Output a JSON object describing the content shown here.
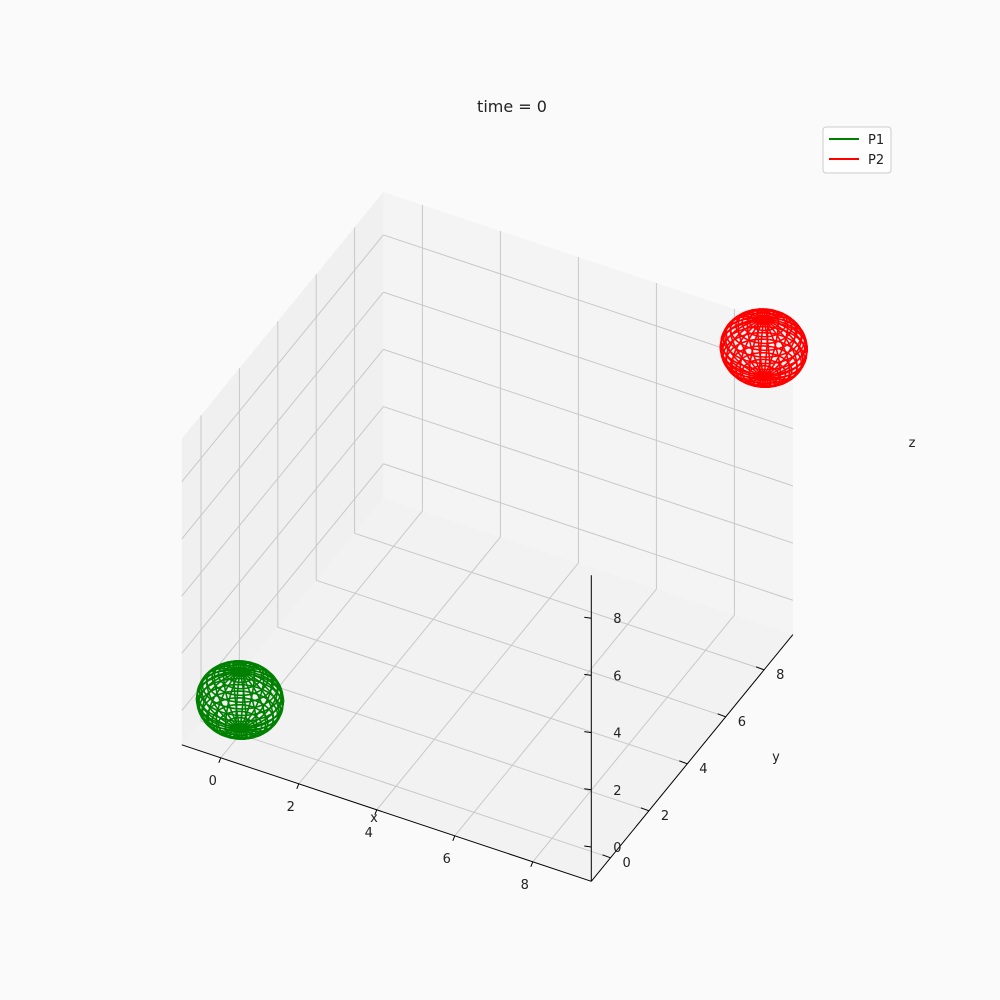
{
  "chart_data": {
    "type": "scatter",
    "projection": "3d",
    "title": "time = 0",
    "xlabel": "x",
    "ylabel": "y",
    "zlabel": "z",
    "xlim": [
      -1,
      9.5
    ],
    "ylim": [
      -1,
      9.5
    ],
    "zlim": [
      -1.2,
      9.5
    ],
    "xticks": [
      0,
      2,
      4,
      6,
      8
    ],
    "yticks": [
      0,
      2,
      4,
      6,
      8
    ],
    "zticks": [
      0,
      2,
      4,
      6,
      8
    ],
    "grid": true,
    "legend": {
      "location": "top-right",
      "entries": [
        {
          "label": "P1",
          "color": "#008000"
        },
        {
          "label": "P2",
          "color": "#ff0000"
        }
      ]
    },
    "series": [
      {
        "name": "P1",
        "color": "#008000",
        "shape": "sphere",
        "center": [
          0,
          0,
          0
        ],
        "radius": 1
      },
      {
        "name": "P2",
        "color": "#ff0000",
        "shape": "sphere",
        "center": [
          9,
          9,
          9
        ],
        "radius": 1
      }
    ]
  }
}
